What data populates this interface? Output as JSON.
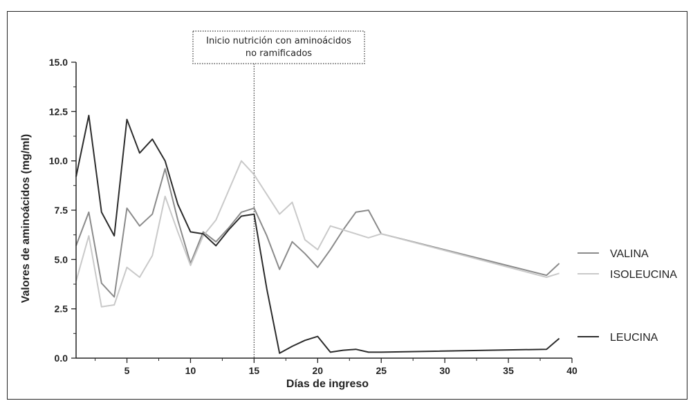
{
  "chart_data": {
    "type": "line",
    "title": "",
    "xlabel": "Días de ingreso",
    "ylabel": "Valores de aminoácidos (mg/ml)",
    "xlim": [
      1,
      40
    ],
    "ylim": [
      0,
      15
    ],
    "x_ticks": [
      "5",
      "10",
      "15",
      "20",
      "25",
      "30",
      "35",
      "40"
    ],
    "y_ticks": [
      "0.0",
      "2.5",
      "5.0",
      "7.5",
      "10.0",
      "12.5",
      "15.0"
    ],
    "annotation": {
      "lines": [
        "Inicio nutrición con aminoácidos",
        "no ramificados"
      ],
      "x": 15
    },
    "series": [
      {
        "name": "VALINA",
        "color": "#8a8a8a",
        "x": [
          1,
          2,
          3,
          4,
          5,
          6,
          7,
          8,
          9,
          10,
          11,
          12,
          13,
          14,
          15,
          16,
          17,
          18,
          19,
          20,
          21,
          22,
          23,
          24,
          25,
          38,
          39
        ],
        "y": [
          5.7,
          7.4,
          3.8,
          3.1,
          7.6,
          6.7,
          7.3,
          9.6,
          7.0,
          4.8,
          6.4,
          5.9,
          6.6,
          7.4,
          7.6,
          6.2,
          4.5,
          5.9,
          5.3,
          4.6,
          5.5,
          6.5,
          7.4,
          7.5,
          6.3,
          4.2,
          4.8
        ]
      },
      {
        "name": "ISOLEUCINA",
        "color": "#c9c9c9",
        "x": [
          1,
          2,
          3,
          4,
          5,
          6,
          7,
          8,
          9,
          10,
          11,
          12,
          13,
          14,
          15,
          16,
          17,
          18,
          19,
          20,
          21,
          22,
          23,
          24,
          25,
          38,
          39
        ],
        "y": [
          3.9,
          6.2,
          2.6,
          2.7,
          4.6,
          4.1,
          5.2,
          8.2,
          6.4,
          4.7,
          6.2,
          7.0,
          8.5,
          10.0,
          9.3,
          8.3,
          7.3,
          7.9,
          6.0,
          5.5,
          6.7,
          6.5,
          6.3,
          6.1,
          6.3,
          4.1,
          4.3
        ]
      },
      {
        "name": "LEUCINA",
        "color": "#2b2b2b",
        "x": [
          1,
          2,
          3,
          4,
          5,
          6,
          7,
          8,
          9,
          10,
          11,
          12,
          13,
          14,
          15,
          16,
          17,
          18,
          19,
          20,
          21,
          22,
          23,
          24,
          25,
          38,
          39
        ],
        "y": [
          9.2,
          12.3,
          7.4,
          6.2,
          12.1,
          10.4,
          11.1,
          10.0,
          7.8,
          6.4,
          6.3,
          5.7,
          6.5,
          7.2,
          7.3,
          3.5,
          0.25,
          0.6,
          0.9,
          1.1,
          0.3,
          0.4,
          0.45,
          0.3,
          0.3,
          0.45,
          1.0
        ]
      }
    ],
    "legend_position": "right"
  }
}
